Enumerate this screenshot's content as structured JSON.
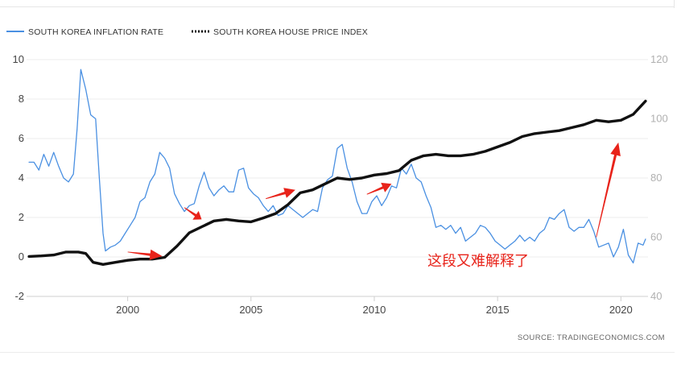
{
  "chart_data": {
    "type": "line",
    "legend": {
      "placement": "top-left",
      "entries": [
        "SOUTH KOREA INFLATION RATE",
        "SOUTH KOREA HOUSE PRICE INDEX"
      ]
    },
    "source": "SOURCE:  TRADINGECONOMICS.COM",
    "annotation": "这段又难解释了",
    "x_ticks": [
      "2000",
      "2005",
      "2010",
      "2015",
      "2020"
    ],
    "xlim": [
      1995.9,
      2021.1
    ],
    "y_left": {
      "ticks": [
        "-2",
        "0",
        "2",
        "4",
        "6",
        "8",
        "10"
      ],
      "ylim": [
        -2,
        10
      ]
    },
    "y_right": {
      "ticks": [
        "40",
        "60",
        "80",
        "100",
        "120"
      ],
      "ylim": [
        40,
        120
      ]
    },
    "colors": {
      "inflation": "#4a90e2",
      "house_price": "#111111",
      "arrow": "#e8231a",
      "grid": "#ececec"
    },
    "series": [
      {
        "name": "SOUTH KOREA INFLATION RATE",
        "axis": "left",
        "points": [
          [
            1996.0,
            4.8
          ],
          [
            1996.2,
            4.8
          ],
          [
            1996.4,
            4.4
          ],
          [
            1996.6,
            5.2
          ],
          [
            1996.8,
            4.6
          ],
          [
            1997.0,
            5.3
          ],
          [
            1997.2,
            4.6
          ],
          [
            1997.4,
            4.0
          ],
          [
            1997.6,
            3.8
          ],
          [
            1997.8,
            4.2
          ],
          [
            1997.95,
            6.5
          ],
          [
            1998.1,
            9.5
          ],
          [
            1998.3,
            8.5
          ],
          [
            1998.5,
            7.2
          ],
          [
            1998.7,
            7.0
          ],
          [
            1998.85,
            4.0
          ],
          [
            1999.0,
            1.2
          ],
          [
            1999.1,
            0.3
          ],
          [
            1999.3,
            0.5
          ],
          [
            1999.5,
            0.6
          ],
          [
            1999.7,
            0.8
          ],
          [
            1999.9,
            1.2
          ],
          [
            2000.1,
            1.6
          ],
          [
            2000.3,
            2.0
          ],
          [
            2000.5,
            2.8
          ],
          [
            2000.7,
            3.0
          ],
          [
            2000.9,
            3.8
          ],
          [
            2001.1,
            4.2
          ],
          [
            2001.3,
            5.3
          ],
          [
            2001.5,
            5.0
          ],
          [
            2001.7,
            4.5
          ],
          [
            2001.9,
            3.2
          ],
          [
            2002.1,
            2.7
          ],
          [
            2002.3,
            2.3
          ],
          [
            2002.5,
            2.6
          ],
          [
            2002.7,
            2.7
          ],
          [
            2002.9,
            3.6
          ],
          [
            2003.1,
            4.3
          ],
          [
            2003.3,
            3.5
          ],
          [
            2003.5,
            3.1
          ],
          [
            2003.7,
            3.4
          ],
          [
            2003.9,
            3.6
          ],
          [
            2004.1,
            3.3
          ],
          [
            2004.3,
            3.3
          ],
          [
            2004.5,
            4.4
          ],
          [
            2004.7,
            4.5
          ],
          [
            2004.9,
            3.5
          ],
          [
            2005.1,
            3.2
          ],
          [
            2005.3,
            3.0
          ],
          [
            2005.5,
            2.6
          ],
          [
            2005.7,
            2.3
          ],
          [
            2005.9,
            2.6
          ],
          [
            2006.1,
            2.1
          ],
          [
            2006.3,
            2.2
          ],
          [
            2006.5,
            2.6
          ],
          [
            2006.7,
            2.4
          ],
          [
            2006.9,
            2.2
          ],
          [
            2007.1,
            2.0
          ],
          [
            2007.3,
            2.2
          ],
          [
            2007.5,
            2.4
          ],
          [
            2007.7,
            2.3
          ],
          [
            2007.9,
            3.5
          ],
          [
            2008.1,
            3.9
          ],
          [
            2008.3,
            4.1
          ],
          [
            2008.5,
            5.5
          ],
          [
            2008.7,
            5.7
          ],
          [
            2008.9,
            4.5
          ],
          [
            2009.1,
            3.8
          ],
          [
            2009.3,
            2.8
          ],
          [
            2009.5,
            2.2
          ],
          [
            2009.7,
            2.2
          ],
          [
            2009.9,
            2.8
          ],
          [
            2010.1,
            3.1
          ],
          [
            2010.3,
            2.6
          ],
          [
            2010.5,
            3.0
          ],
          [
            2010.7,
            3.6
          ],
          [
            2010.9,
            3.5
          ],
          [
            2011.1,
            4.5
          ],
          [
            2011.3,
            4.2
          ],
          [
            2011.5,
            4.7
          ],
          [
            2011.7,
            4.0
          ],
          [
            2011.9,
            3.8
          ],
          [
            2012.1,
            3.1
          ],
          [
            2012.3,
            2.5
          ],
          [
            2012.5,
            1.5
          ],
          [
            2012.7,
            1.6
          ],
          [
            2012.9,
            1.4
          ],
          [
            2013.1,
            1.6
          ],
          [
            2013.3,
            1.2
          ],
          [
            2013.5,
            1.5
          ],
          [
            2013.7,
            0.8
          ],
          [
            2013.9,
            1.0
          ],
          [
            2014.1,
            1.2
          ],
          [
            2014.3,
            1.6
          ],
          [
            2014.5,
            1.5
          ],
          [
            2014.7,
            1.2
          ],
          [
            2014.9,
            0.8
          ],
          [
            2015.1,
            0.6
          ],
          [
            2015.3,
            0.4
          ],
          [
            2015.5,
            0.6
          ],
          [
            2015.7,
            0.8
          ],
          [
            2015.9,
            1.1
          ],
          [
            2016.1,
            0.8
          ],
          [
            2016.3,
            1.0
          ],
          [
            2016.5,
            0.8
          ],
          [
            2016.7,
            1.2
          ],
          [
            2016.9,
            1.4
          ],
          [
            2017.1,
            2.0
          ],
          [
            2017.3,
            1.9
          ],
          [
            2017.5,
            2.2
          ],
          [
            2017.7,
            2.4
          ],
          [
            2017.9,
            1.5
          ],
          [
            2018.1,
            1.3
          ],
          [
            2018.3,
            1.5
          ],
          [
            2018.5,
            1.5
          ],
          [
            2018.7,
            1.9
          ],
          [
            2018.9,
            1.3
          ],
          [
            2019.1,
            0.5
          ],
          [
            2019.3,
            0.6
          ],
          [
            2019.5,
            0.7
          ],
          [
            2019.7,
            0.0
          ],
          [
            2019.9,
            0.5
          ],
          [
            2020.1,
            1.4
          ],
          [
            2020.3,
            0.1
          ],
          [
            2020.5,
            -0.3
          ],
          [
            2020.7,
            0.7
          ],
          [
            2020.9,
            0.6
          ],
          [
            2021.0,
            0.9
          ]
        ]
      },
      {
        "name": "SOUTH KOREA HOUSE PRICE INDEX",
        "axis": "right",
        "points": [
          [
            1996.0,
            53.5
          ],
          [
            1996.5,
            53.7
          ],
          [
            1997.0,
            54.0
          ],
          [
            1997.5,
            55.0
          ],
          [
            1998.0,
            55.0
          ],
          [
            1998.3,
            54.5
          ],
          [
            1998.6,
            51.5
          ],
          [
            1999.0,
            50.8
          ],
          [
            1999.5,
            51.5
          ],
          [
            2000.0,
            52.2
          ],
          [
            2000.5,
            52.6
          ],
          [
            2001.0,
            52.6
          ],
          [
            2001.5,
            53.2
          ],
          [
            2002.0,
            57.0
          ],
          [
            2002.5,
            61.5
          ],
          [
            2003.0,
            63.5
          ],
          [
            2003.5,
            65.5
          ],
          [
            2004.0,
            66.0
          ],
          [
            2004.5,
            65.5
          ],
          [
            2005.0,
            65.2
          ],
          [
            2005.5,
            66.5
          ],
          [
            2006.0,
            68.0
          ],
          [
            2006.5,
            71.0
          ],
          [
            2007.0,
            75.0
          ],
          [
            2007.5,
            76.0
          ],
          [
            2008.0,
            78.0
          ],
          [
            2008.5,
            80.0
          ],
          [
            2009.0,
            79.5
          ],
          [
            2009.5,
            80.0
          ],
          [
            2010.0,
            81.0
          ],
          [
            2010.5,
            81.5
          ],
          [
            2011.0,
            82.5
          ],
          [
            2011.5,
            86.0
          ],
          [
            2012.0,
            87.5
          ],
          [
            2012.5,
            88.0
          ],
          [
            2013.0,
            87.5
          ],
          [
            2013.5,
            87.5
          ],
          [
            2014.0,
            88.0
          ],
          [
            2014.5,
            89.0
          ],
          [
            2015.0,
            90.5
          ],
          [
            2015.5,
            92.0
          ],
          [
            2016.0,
            94.0
          ],
          [
            2016.5,
            95.0
          ],
          [
            2017.0,
            95.5
          ],
          [
            2017.5,
            96.0
          ],
          [
            2018.0,
            97.0
          ],
          [
            2018.5,
            98.0
          ],
          [
            2019.0,
            99.5
          ],
          [
            2019.5,
            99.0
          ],
          [
            2020.0,
            99.5
          ],
          [
            2020.5,
            101.5
          ],
          [
            2021.0,
            106.0
          ]
        ]
      }
    ],
    "arrows": [
      {
        "from": [
          2000.0,
          55.0
        ],
        "to": [
          2001.4,
          53.6
        ]
      },
      {
        "from": [
          2002.3,
          70.0
        ],
        "to": [
          2003.0,
          66.0
        ]
      },
      {
        "from": [
          2005.6,
          73.0
        ],
        "to": [
          2006.8,
          76.0
        ]
      },
      {
        "from": [
          2009.7,
          74.5
        ],
        "to": [
          2010.7,
          78.0
        ]
      },
      {
        "from": [
          2019.0,
          60.0
        ],
        "to": [
          2019.9,
          92.0
        ]
      }
    ]
  }
}
